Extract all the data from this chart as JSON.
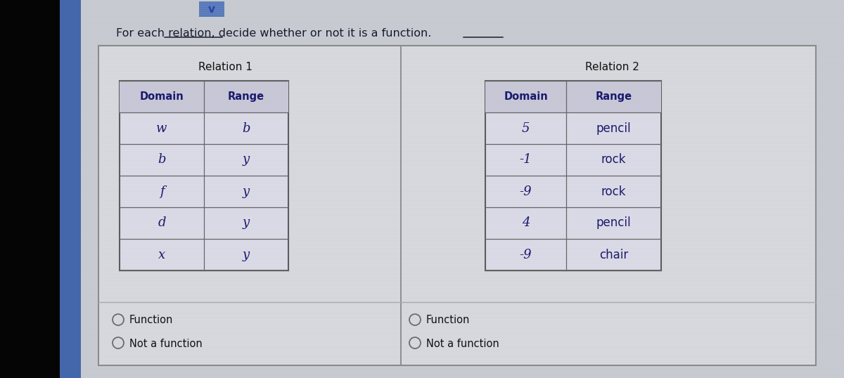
{
  "title_text": "For each relation, decide whether or not it is a function.",
  "bg_left_color": "#0a0a0a",
  "bg_page_color": "#c8ccd4",
  "bg_content_color": "#d4d8e0",
  "outer_box_color": "#999999",
  "table_bg": "#dcdce8",
  "header_bg": "#c8c8d8",
  "relation1_title": "Relation 1",
  "relation2_title": "Relation 2",
  "relation1_domain": [
    "w",
    "b",
    "f",
    "d",
    "x"
  ],
  "relation1_range": [
    "b",
    "y",
    "y",
    "y",
    "y"
  ],
  "relation2_domain": [
    "5",
    "-1",
    "-9",
    "4",
    "-9"
  ],
  "relation2_range": [
    "pencil",
    "rock",
    "rock",
    "pencil",
    "chair"
  ],
  "radio_labels_1": [
    "Function",
    "Not a function"
  ],
  "radio_labels_2": [
    "Function",
    "Not a function"
  ],
  "text_color": "#1a1a6e",
  "dark_text": "#1a1a2e",
  "dropdown_color": "#5577aa",
  "dropdown_check": "#2244aa"
}
